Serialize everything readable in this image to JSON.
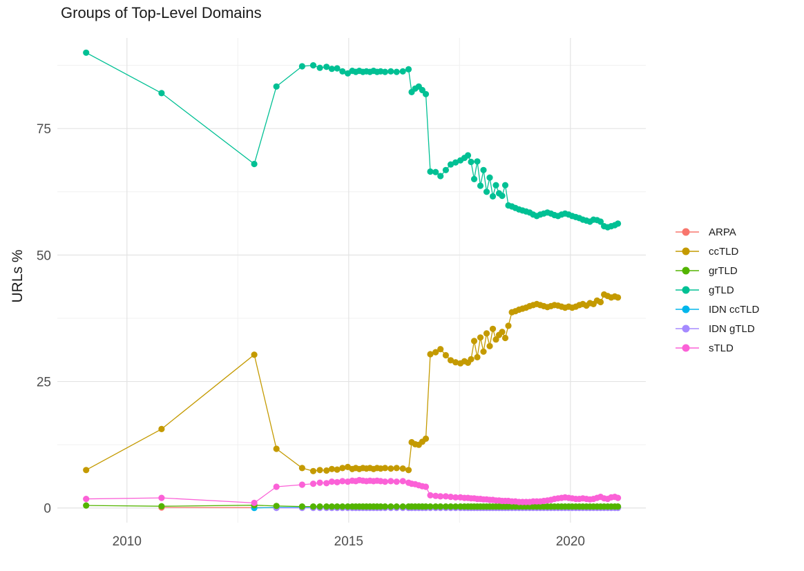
{
  "chart_data": {
    "type": "line",
    "marker": "point",
    "title": "Groups of Top-Level Domains",
    "xlabel": "",
    "ylabel": "URLs %",
    "grid": "major+minor",
    "legend_position": "right",
    "x_ticks": [
      2010,
      2015,
      2020
    ],
    "x_tick_labels": [
      "2010",
      "2015",
      "2020"
    ],
    "y_ticks": [
      0,
      25,
      50,
      75
    ],
    "y_tick_labels": [
      "0",
      "25",
      "50",
      "75"
    ],
    "x_minor_ticks": [
      2012.5,
      2017.5
    ],
    "y_minor_ticks": [
      12.5,
      37.5,
      62.5,
      87.5
    ],
    "xlim": [
      2008.43,
      2021.7
    ],
    "ylim": [
      -2.9,
      92.9
    ],
    "grid_major_color": "#e3e3e3",
    "grid_minor_color": "#f0f0f0",
    "x": [
      2009.08,
      2010.78,
      2012.87,
      2013.37,
      2013.95,
      2014.2,
      2014.35,
      2014.5,
      2014.62,
      2014.74,
      2014.86,
      2014.98,
      2015.08,
      2015.16,
      2015.24,
      2015.32,
      2015.4,
      2015.48,
      2015.56,
      2015.64,
      2015.72,
      2015.82,
      2015.95,
      2016.08,
      2016.22,
      2016.35,
      2016.42,
      2016.5,
      2016.58,
      2016.66,
      2016.74,
      2016.84,
      2016.96,
      2017.07,
      2017.19,
      2017.3,
      2017.41,
      2017.52,
      2017.61,
      2017.69,
      2017.76,
      2017.83,
      2017.9,
      2017.97,
      2018.04,
      2018.11,
      2018.18,
      2018.25,
      2018.32,
      2018.39,
      2018.46,
      2018.53,
      2018.6,
      2018.68,
      2018.76,
      2018.84,
      2018.92,
      2019.0,
      2019.08,
      2019.16,
      2019.24,
      2019.32,
      2019.4,
      2019.48,
      2019.56,
      2019.64,
      2019.72,
      2019.8,
      2019.88,
      2019.96,
      2020.04,
      2020.12,
      2020.2,
      2020.28,
      2020.36,
      2020.44,
      2020.52,
      2020.6,
      2020.68,
      2020.76,
      2020.84,
      2020.92,
      2021.0,
      2021.07
    ],
    "series": [
      {
        "name": "ARPA",
        "slug": "arpa",
        "color": "#F8766D",
        "z": 0,
        "y": [
          null,
          0.1,
          0.08,
          0.06,
          0.06,
          0.06,
          0.06,
          0.06,
          0.06,
          0.06,
          0.06,
          0.06,
          0.06,
          0.06,
          0.06,
          0.06,
          0.06,
          0.06,
          0.06,
          0.06,
          0.06,
          0.06,
          0.06,
          0.06,
          0.06,
          0.06,
          0.06,
          0.06,
          0.06,
          0.06,
          0.06,
          0.06,
          0.06,
          0.06,
          0.06,
          0.06,
          0.06,
          0.06,
          0.06,
          0.06,
          0.06,
          0.06,
          0.06,
          0.06,
          0.06,
          0.06,
          0.06,
          0.06,
          0.06,
          0.06,
          0.06,
          0.06,
          0.06,
          0.06,
          0.06,
          0.06,
          0.06,
          0.06,
          0.06,
          0.06,
          0.06,
          0.06,
          0.06,
          0.06,
          0.06,
          0.06,
          0.06,
          0.06,
          0.06,
          0.06,
          0.06,
          0.06,
          0.06,
          0.06,
          0.06,
          0.06,
          0.06,
          0.06,
          0.06,
          0.06,
          0.06,
          0.06,
          0.06,
          0.06
        ]
      },
      {
        "name": "ccTLD",
        "slug": "cctld",
        "color": "#C49A00",
        "z": 4,
        "y": [
          7.5,
          15.6,
          30.3,
          11.7,
          7.9,
          7.3,
          7.5,
          7.4,
          7.7,
          7.6,
          7.9,
          8.1,
          7.7,
          7.9,
          7.7,
          7.9,
          7.8,
          7.9,
          7.7,
          7.9,
          7.8,
          7.9,
          7.8,
          7.9,
          7.8,
          7.5,
          13.0,
          12.6,
          12.5,
          13.1,
          13.7,
          30.4,
          30.8,
          31.4,
          30.2,
          29.2,
          28.8,
          28.6,
          29.0,
          28.7,
          29.4,
          33.0,
          29.8,
          33.7,
          30.9,
          34.5,
          32.0,
          35.4,
          33.3,
          34.2,
          34.8,
          33.6,
          36.0,
          38.7,
          38.9,
          39.2,
          39.4,
          39.6,
          39.9,
          40.1,
          40.3,
          40.1,
          39.9,
          39.7,
          39.9,
          40.1,
          40.0,
          39.8,
          39.6,
          39.8,
          39.6,
          39.8,
          40.1,
          40.3,
          40.0,
          40.5,
          40.3,
          41.0,
          40.7,
          42.2,
          41.9,
          41.6,
          41.8,
          41.6
        ]
      },
      {
        "name": "grTLD",
        "slug": "grtld",
        "color": "#53B400",
        "z": 3,
        "y": [
          0.5,
          0.35,
          0.55,
          0.4,
          0.3,
          0.3,
          0.3,
          0.3,
          0.3,
          0.3,
          0.3,
          0.3,
          0.3,
          0.3,
          0.3,
          0.3,
          0.3,
          0.3,
          0.3,
          0.3,
          0.3,
          0.3,
          0.3,
          0.3,
          0.3,
          0.3,
          0.3,
          0.3,
          0.3,
          0.3,
          0.3,
          0.3,
          0.3,
          0.3,
          0.3,
          0.3,
          0.3,
          0.3,
          0.3,
          0.3,
          0.3,
          0.3,
          0.3,
          0.3,
          0.3,
          0.3,
          0.3,
          0.3,
          0.3,
          0.3,
          0.3,
          0.3,
          0.3,
          0.3,
          0.3,
          0.3,
          0.3,
          0.3,
          0.3,
          0.3,
          0.3,
          0.3,
          0.3,
          0.3,
          0.3,
          0.3,
          0.3,
          0.3,
          0.3,
          0.3,
          0.3,
          0.3,
          0.3,
          0.3,
          0.3,
          0.3,
          0.3,
          0.3,
          0.3,
          0.3,
          0.3,
          0.3,
          0.3,
          0.3
        ]
      },
      {
        "name": "gTLD",
        "slug": "gtld",
        "color": "#00C094",
        "z": 5,
        "y": [
          90.0,
          82.0,
          68.0,
          83.3,
          87.3,
          87.5,
          87.0,
          87.2,
          86.8,
          86.9,
          86.3,
          85.9,
          86.4,
          86.2,
          86.4,
          86.2,
          86.3,
          86.2,
          86.4,
          86.2,
          86.3,
          86.2,
          86.3,
          86.2,
          86.3,
          86.7,
          82.2,
          82.9,
          83.3,
          82.6,
          81.8,
          66.5,
          66.4,
          65.6,
          66.8,
          67.9,
          68.3,
          68.7,
          69.2,
          69.7,
          68.4,
          65.0,
          68.5,
          63.7,
          66.8,
          62.5,
          65.3,
          61.6,
          63.8,
          62.2,
          61.7,
          63.8,
          59.8,
          59.6,
          59.3,
          59.0,
          58.8,
          58.6,
          58.4,
          58.0,
          57.7,
          58.0,
          58.2,
          58.4,
          58.2,
          57.9,
          57.7,
          58.0,
          58.2,
          58.0,
          57.7,
          57.5,
          57.3,
          57.0,
          56.8,
          56.6,
          57.0,
          56.9,
          56.6,
          55.7,
          55.5,
          55.7,
          55.9,
          56.2
        ]
      },
      {
        "name": "IDN ccTLD",
        "slug": "idn-cctld",
        "color": "#00B6EB",
        "z": 1,
        "y": [
          null,
          null,
          0.0,
          0.12,
          0.12,
          0.12,
          0.12,
          0.12,
          0.12,
          0.12,
          0.12,
          0.12,
          0.12,
          0.12,
          0.12,
          0.12,
          0.12,
          0.12,
          0.12,
          0.12,
          0.12,
          0.12,
          0.12,
          0.12,
          0.12,
          0.12,
          0.12,
          0.12,
          0.12,
          0.12,
          0.12,
          0.12,
          0.12,
          0.12,
          0.12,
          0.12,
          0.12,
          0.12,
          0.12,
          0.12,
          0.12,
          0.12,
          0.12,
          0.12,
          0.12,
          0.12,
          0.12,
          0.12,
          0.12,
          0.12,
          0.12,
          0.12,
          0.12,
          0.12,
          0.12,
          0.12,
          0.12,
          0.12,
          0.12,
          0.12,
          0.12,
          0.12,
          0.12,
          0.12,
          0.12,
          0.12,
          0.12,
          0.12,
          0.12,
          0.12,
          0.12,
          0.12,
          0.12,
          0.12,
          0.12,
          0.12,
          0.12,
          0.12,
          0.12,
          0.12,
          0.12,
          0.12,
          0.12,
          0.12
        ]
      },
      {
        "name": "IDN gTLD",
        "slug": "idn-gtld",
        "color": "#A58AFF",
        "z": 2,
        "y": [
          null,
          null,
          null,
          0.02,
          0.02,
          0.02,
          0.02,
          0.02,
          0.02,
          0.02,
          0.02,
          0.02,
          0.02,
          0.02,
          0.02,
          0.02,
          0.02,
          0.02,
          0.02,
          0.02,
          0.02,
          0.02,
          0.02,
          0.02,
          0.02,
          0.02,
          0.02,
          0.02,
          0.02,
          0.02,
          0.02,
          0.02,
          0.02,
          0.02,
          0.02,
          0.02,
          0.02,
          0.02,
          0.02,
          0.02,
          0.02,
          0.02,
          0.02,
          0.02,
          0.02,
          0.02,
          0.02,
          0.02,
          0.02,
          0.02,
          0.02,
          0.02,
          0.02,
          0.02,
          0.02,
          0.02,
          0.02,
          0.02,
          0.02,
          0.02,
          0.02,
          0.02,
          0.02,
          0.02,
          0.02,
          0.02,
          0.02,
          0.02,
          0.02,
          0.02,
          0.02,
          0.02,
          0.02,
          0.02,
          0.02,
          0.02,
          0.02,
          0.02,
          0.02,
          0.02,
          0.02,
          0.02,
          0.02,
          0.02
        ]
      },
      {
        "name": "sTLD",
        "slug": "stld",
        "color": "#FB61D7",
        "z": 6,
        "y": [
          1.8,
          2.0,
          1.0,
          4.2,
          4.6,
          4.8,
          5.0,
          4.9,
          5.2,
          5.1,
          5.3,
          5.2,
          5.4,
          5.3,
          5.5,
          5.4,
          5.3,
          5.4,
          5.3,
          5.4,
          5.3,
          5.2,
          5.3,
          5.2,
          5.3,
          5.0,
          4.8,
          4.7,
          4.5,
          4.3,
          4.2,
          2.5,
          2.4,
          2.3,
          2.3,
          2.2,
          2.1,
          2.1,
          2.0,
          2.0,
          1.9,
          1.9,
          1.8,
          1.8,
          1.7,
          1.7,
          1.6,
          1.6,
          1.5,
          1.5,
          1.4,
          1.4,
          1.4,
          1.3,
          1.3,
          1.2,
          1.2,
          1.2,
          1.2,
          1.3,
          1.3,
          1.3,
          1.4,
          1.5,
          1.6,
          1.8,
          1.9,
          2.0,
          2.1,
          2.0,
          1.9,
          1.8,
          1.8,
          1.9,
          1.8,
          1.7,
          1.8,
          2.0,
          2.2,
          1.9,
          1.8,
          2.1,
          2.2,
          2.0
        ]
      }
    ]
  }
}
